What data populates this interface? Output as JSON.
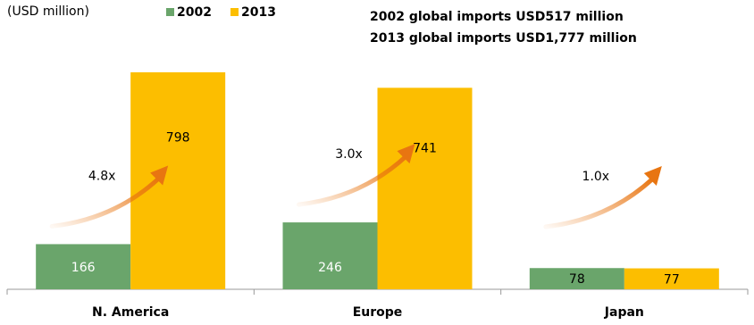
{
  "chart_data": {
    "type": "bar",
    "unit_label": "(USD million)",
    "categories": [
      "N. America",
      "Europe",
      "Japan"
    ],
    "series": [
      {
        "name": "2002",
        "color": "#6aa56b",
        "values": [
          166,
          246,
          78
        ]
      },
      {
        "name": "2013",
        "color": "#fcbe00",
        "values": [
          798,
          741,
          77
        ]
      }
    ],
    "ylim": [
      0,
      880
    ],
    "grid": false,
    "legend": "top-left",
    "notes": [
      "2002 global imports USD517 million",
      "2013 global imports USD1,777 million"
    ],
    "growth": [
      "4.8x",
      "3.0x",
      "1.0x"
    ],
    "arrow_color": "#e87511"
  }
}
